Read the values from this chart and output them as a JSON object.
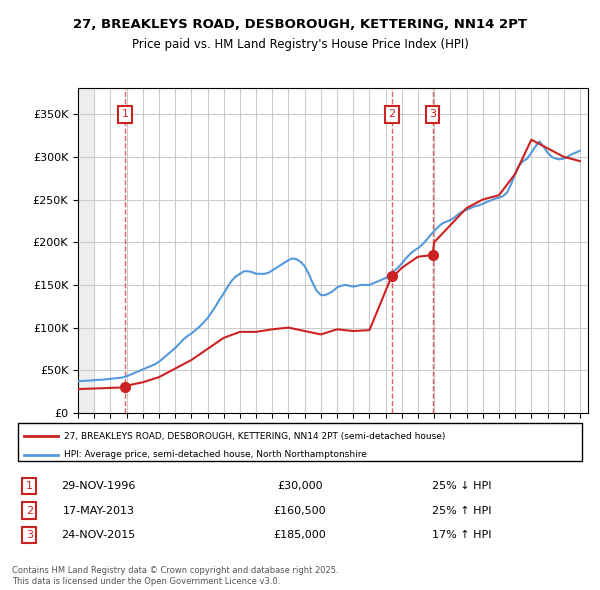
{
  "title": "27, BREAKLEYS ROAD, DESBOROUGH, KETTERING, NN14 2PT",
  "subtitle": "Price paid vs. HM Land Registry's House Price Index (HPI)",
  "legend_label_red": "27, BREAKLEYS ROAD, DESBOROUGH, KETTERING, NN14 2PT (semi-detached house)",
  "legend_label_blue": "HPI: Average price, semi-detached house, North Northamptonshire",
  "transactions": [
    {
      "num": 1,
      "date": "29-NOV-1996",
      "price": 30000,
      "pct": "25%",
      "dir": "↓",
      "x": 1996.91
    },
    {
      "num": 2,
      "date": "17-MAY-2013",
      "price": 160500,
      "pct": "25%",
      "dir": "↑",
      "x": 2013.38
    },
    {
      "num": 3,
      "date": "24-NOV-2015",
      "price": 185000,
      "pct": "17%",
      "dir": "↑",
      "x": 2015.9
    }
  ],
  "hpi_color": "#5599dd",
  "price_color": "#cc2222",
  "dashed_color": "#cc2222",
  "background_hatch_color": "#e8e8e8",
  "grid_color": "#cccccc",
  "ylim": [
    0,
    380000
  ],
  "xlim_start": 1994.0,
  "xlim_end": 2025.5,
  "footer": "Contains HM Land Registry data © Crown copyright and database right 2025.\nThis data is licensed under the Open Government Licence v3.0.",
  "hpi_data_x": [
    1994.0,
    1994.25,
    1994.5,
    1994.75,
    1995.0,
    1995.25,
    1995.5,
    1995.75,
    1996.0,
    1996.25,
    1996.5,
    1996.75,
    1997.0,
    1997.25,
    1997.5,
    1997.75,
    1998.0,
    1998.25,
    1998.5,
    1998.75,
    1999.0,
    1999.25,
    1999.5,
    1999.75,
    2000.0,
    2000.25,
    2000.5,
    2000.75,
    2001.0,
    2001.25,
    2001.5,
    2001.75,
    2002.0,
    2002.25,
    2002.5,
    2002.75,
    2003.0,
    2003.25,
    2003.5,
    2003.75,
    2004.0,
    2004.25,
    2004.5,
    2004.75,
    2005.0,
    2005.25,
    2005.5,
    2005.75,
    2006.0,
    2006.25,
    2006.5,
    2006.75,
    2007.0,
    2007.25,
    2007.5,
    2007.75,
    2008.0,
    2008.25,
    2008.5,
    2008.75,
    2009.0,
    2009.25,
    2009.5,
    2009.75,
    2010.0,
    2010.25,
    2010.5,
    2010.75,
    2011.0,
    2011.25,
    2011.5,
    2011.75,
    2012.0,
    2012.25,
    2012.5,
    2012.75,
    2013.0,
    2013.25,
    2013.5,
    2013.75,
    2014.0,
    2014.25,
    2014.5,
    2014.75,
    2015.0,
    2015.25,
    2015.5,
    2015.75,
    2016.0,
    2016.25,
    2016.5,
    2016.75,
    2017.0,
    2017.25,
    2017.5,
    2017.75,
    2018.0,
    2018.25,
    2018.5,
    2018.75,
    2019.0,
    2019.25,
    2019.5,
    2019.75,
    2020.0,
    2020.25,
    2020.5,
    2020.75,
    2021.0,
    2021.25,
    2021.5,
    2021.75,
    2022.0,
    2022.25,
    2022.5,
    2022.75,
    2023.0,
    2023.25,
    2023.5,
    2023.75,
    2024.0,
    2024.25,
    2024.5,
    2024.75,
    2025.0
  ],
  "hpi_data_y": [
    37000,
    37500,
    37800,
    38000,
    38500,
    38800,
    39000,
    39500,
    40000,
    40500,
    41000,
    41500,
    43000,
    45000,
    47000,
    49000,
    51000,
    53000,
    55000,
    57000,
    60000,
    64000,
    68000,
    72000,
    76000,
    81000,
    86000,
    90000,
    93000,
    97000,
    101000,
    106000,
    111000,
    118000,
    125000,
    133000,
    140000,
    148000,
    155000,
    160000,
    163000,
    166000,
    166000,
    165000,
    163000,
    163000,
    163000,
    164000,
    167000,
    170000,
    173000,
    176000,
    179000,
    181000,
    180000,
    177000,
    172000,
    163000,
    152000,
    143000,
    138000,
    138000,
    140000,
    143000,
    147000,
    149000,
    150000,
    149000,
    148000,
    149000,
    150000,
    150000,
    150000,
    152000,
    154000,
    156000,
    158000,
    162000,
    166000,
    170000,
    175000,
    181000,
    186000,
    190000,
    193000,
    197000,
    202000,
    208000,
    213000,
    218000,
    222000,
    224000,
    226000,
    229000,
    233000,
    236000,
    238000,
    240000,
    242000,
    243000,
    245000,
    247000,
    249000,
    251000,
    252000,
    254000,
    258000,
    268000,
    280000,
    290000,
    295000,
    298000,
    305000,
    312000,
    318000,
    312000,
    305000,
    300000,
    298000,
    297000,
    298000,
    300000,
    303000,
    305000,
    307000
  ],
  "price_data_x": [
    1994.0,
    1996.91,
    1997.0,
    1998.0,
    1999.0,
    2000.0,
    2001.0,
    2002.0,
    2003.0,
    2004.0,
    2005.0,
    2006.0,
    2007.0,
    2008.0,
    2009.0,
    2010.0,
    2011.0,
    2012.0,
    2013.38,
    2013.5,
    2014.0,
    2015.0,
    2015.9,
    2016.0,
    2017.0,
    2018.0,
    2019.0,
    2020.0,
    2021.0,
    2022.0,
    2023.0,
    2024.0,
    2025.0
  ],
  "price_data_y": [
    28000,
    30000,
    32000,
    36000,
    42000,
    52000,
    62000,
    75000,
    88000,
    95000,
    95000,
    98000,
    100000,
    96000,
    92000,
    98000,
    96000,
    97000,
    160500,
    160500,
    170000,
    183000,
    185000,
    200000,
    220000,
    240000,
    250000,
    255000,
    280000,
    320000,
    310000,
    300000,
    295000
  ]
}
